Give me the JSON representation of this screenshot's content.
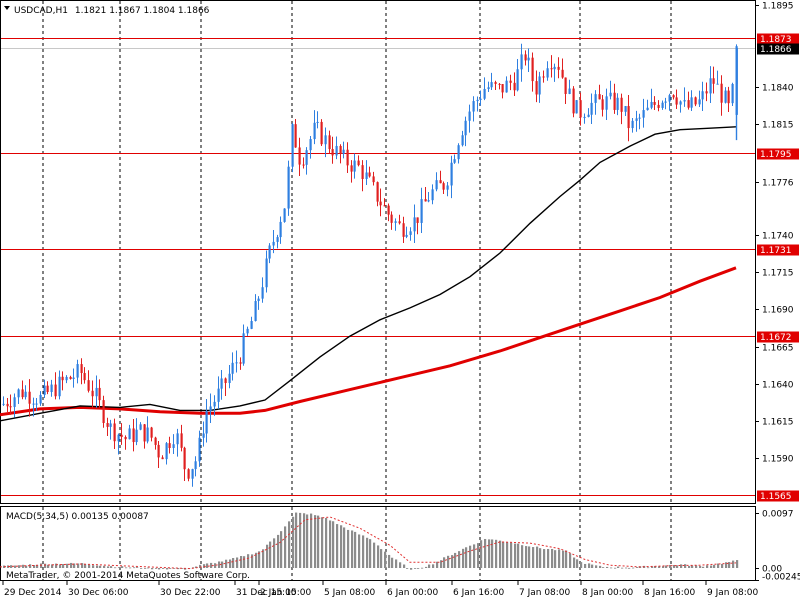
{
  "header": {
    "symbol_timeframe": "USDCAD,H1",
    "ohlc": "1.1821 1.1867 1.1804 1.1866"
  },
  "indicator": {
    "label": "MACD(5,34,5) 0.00135 0.00087",
    "copyright": "MetaTrader, © 2001-2014 MetaQuotes Software Corp."
  },
  "colors": {
    "bull": "#2f7fe0",
    "bear": "#e02020",
    "ma_fast": "#000000",
    "ma_slow": "#e00000",
    "hline": "#e00000",
    "macd_bar": "#8c8c8c",
    "macd_signal": "#e03030",
    "grid": "#000000"
  },
  "chart_data": [
    {
      "type": "candlestick",
      "title": "USDCAD,H1",
      "price_axis": {
        "ticks": [
          1.1895,
          1.184,
          1.1815,
          1.1776,
          1.174,
          1.1715,
          1.169,
          1.1665,
          1.164,
          1.1615,
          1.159
        ],
        "ylim": [
          1.156,
          1.1897
        ]
      },
      "time_axis": {
        "labels": [
          "29 Dec 2014",
          "30 Dec 06:00",
          "30 Dec 22:00",
          "31 Dec 15:00",
          "2 Jan 15:00",
          "5 Jan 08:00",
          "6 Jan 00:00",
          "6 Jan 16:00",
          "7 Jan 08:00",
          "8 Jan 00:00",
          "8 Jan 16:00",
          "9 Jan 08:00"
        ]
      },
      "horizontal_levels": [
        1.1873,
        1.1866,
        1.1795,
        1.1731,
        1.1672,
        1.1565
      ],
      "level_labels": [
        "1.1873",
        "1.1866",
        "1.1795",
        "1.1731",
        "1.1672",
        "1.1565"
      ],
      "price_path": [
        [
          0,
          1.1625
        ],
        [
          20,
          1.1635
        ],
        [
          40,
          1.163
        ],
        [
          60,
          1.164
        ],
        [
          80,
          1.1648
        ],
        [
          96,
          1.163
        ],
        [
          110,
          1.161
        ],
        [
          125,
          1.1603
        ],
        [
          140,
          1.1608
        ],
        [
          150,
          1.1605
        ],
        [
          160,
          1.1592
        ],
        [
          175,
          1.1608
        ],
        [
          186,
          1.158
        ],
        [
          197,
          1.159
        ],
        [
          205,
          1.162
        ],
        [
          220,
          1.1635
        ],
        [
          240,
          1.166
        ],
        [
          255,
          1.169
        ],
        [
          270,
          1.173
        ],
        [
          285,
          1.1762
        ],
        [
          292,
          1.1812
        ],
        [
          300,
          1.179
        ],
        [
          315,
          1.1812
        ],
        [
          330,
          1.18
        ],
        [
          345,
          1.179
        ],
        [
          360,
          1.1785
        ],
        [
          375,
          1.1768
        ],
        [
          390,
          1.1752
        ],
        [
          400,
          1.1745
        ],
        [
          415,
          1.175
        ],
        [
          430,
          1.1768
        ],
        [
          445,
          1.1775
        ],
        [
          460,
          1.181
        ],
        [
          470,
          1.1825
        ],
        [
          485,
          1.184
        ],
        [
          500,
          1.1838
        ],
        [
          515,
          1.1845
        ],
        [
          525,
          1.1862
        ],
        [
          535,
          1.1838
        ],
        [
          548,
          1.186
        ],
        [
          558,
          1.1855
        ],
        [
          568,
          1.1835
        ],
        [
          578,
          1.1822
        ],
        [
          590,
          1.1828
        ],
        [
          605,
          1.183
        ],
        [
          620,
          1.1828
        ],
        [
          630,
          1.1812
        ],
        [
          645,
          1.1822
        ],
        [
          660,
          1.1832
        ],
        [
          672,
          1.1838
        ],
        [
          685,
          1.1825
        ],
        [
          700,
          1.183
        ],
        [
          712,
          1.1845
        ],
        [
          725,
          1.183
        ],
        [
          730,
          1.1822
        ],
        [
          736,
          1.1866
        ]
      ],
      "ma_fast": [
        [
          0,
          1.1615
        ],
        [
          40,
          1.162
        ],
        [
          80,
          1.1625
        ],
        [
          120,
          1.1624
        ],
        [
          150,
          1.1626
        ],
        [
          180,
          1.1622
        ],
        [
          210,
          1.1622
        ],
        [
          240,
          1.1625
        ],
        [
          265,
          1.1629
        ],
        [
          290,
          1.1642
        ],
        [
          320,
          1.1658
        ],
        [
          350,
          1.1672
        ],
        [
          380,
          1.1683
        ],
        [
          410,
          1.1691
        ],
        [
          440,
          1.17
        ],
        [
          470,
          1.1712
        ],
        [
          500,
          1.1728
        ],
        [
          530,
          1.1748
        ],
        [
          560,
          1.1766
        ],
        [
          580,
          1.1777
        ],
        [
          600,
          1.1789
        ],
        [
          630,
          1.18
        ],
        [
          655,
          1.1808
        ],
        [
          680,
          1.1811
        ],
        [
          710,
          1.1812
        ],
        [
          736,
          1.1813
        ]
      ],
      "ma_slow": [
        [
          0,
          1.1619
        ],
        [
          40,
          1.1623
        ],
        [
          80,
          1.1624
        ],
        [
          120,
          1.1623
        ],
        [
          160,
          1.1621
        ],
        [
          200,
          1.162
        ],
        [
          240,
          1.162
        ],
        [
          265,
          1.1622
        ],
        [
          300,
          1.1628
        ],
        [
          350,
          1.1636
        ],
        [
          400,
          1.1644
        ],
        [
          450,
          1.1652
        ],
        [
          500,
          1.1662
        ],
        [
          540,
          1.1671
        ],
        [
          580,
          1.168
        ],
        [
          620,
          1.1689
        ],
        [
          660,
          1.1698
        ],
        [
          700,
          1.1709
        ],
        [
          736,
          1.1718
        ]
      ]
    },
    {
      "type": "bar",
      "title": "MACD(5,34,5) 0.00135 0.00087",
      "axis_ticks": [
        "0.0097",
        "0.00",
        "-0.00245"
      ],
      "ylim": [
        -0.00245,
        0.0097
      ],
      "histogram_path": [
        [
          0,
          0.0003
        ],
        [
          40,
          0.0007
        ],
        [
          80,
          0.0008
        ],
        [
          110,
          0.0003
        ],
        [
          150,
          -0.0001
        ],
        [
          185,
          -0.0002
        ],
        [
          200,
          0.0005
        ],
        [
          230,
          0.0015
        ],
        [
          260,
          0.003
        ],
        [
          280,
          0.0065
        ],
        [
          295,
          0.0097
        ],
        [
          310,
          0.0095
        ],
        [
          325,
          0.0088
        ],
        [
          345,
          0.007
        ],
        [
          370,
          0.005
        ],
        [
          390,
          0.002
        ],
        [
          410,
          -0.0004
        ],
        [
          430,
          0.0006
        ],
        [
          460,
          0.0032
        ],
        [
          485,
          0.0052
        ],
        [
          510,
          0.0045
        ],
        [
          540,
          0.0035
        ],
        [
          565,
          0.003
        ],
        [
          580,
          0.001
        ],
        [
          600,
          0.0002
        ],
        [
          630,
          0.0001
        ],
        [
          660,
          0.0004
        ],
        [
          680,
          0.0006
        ],
        [
          700,
          0.0003
        ],
        [
          720,
          0.0008
        ],
        [
          736,
          0.0013
        ]
      ],
      "signal_path": [
        [
          0,
          0.0002
        ],
        [
          40,
          0.0005
        ],
        [
          80,
          0.0007
        ],
        [
          120,
          0.0004
        ],
        [
          160,
          0.0001
        ],
        [
          190,
          -0.0001
        ],
        [
          220,
          0.0006
        ],
        [
          250,
          0.0018
        ],
        [
          280,
          0.0045
        ],
        [
          305,
          0.0085
        ],
        [
          330,
          0.009
        ],
        [
          360,
          0.007
        ],
        [
          390,
          0.004
        ],
        [
          410,
          0.001
        ],
        [
          440,
          0.001
        ],
        [
          470,
          0.003
        ],
        [
          500,
          0.0046
        ],
        [
          530,
          0.0044
        ],
        [
          560,
          0.0034
        ],
        [
          585,
          0.0015
        ],
        [
          610,
          0.0005
        ],
        [
          640,
          0.0002
        ],
        [
          670,
          0.0004
        ],
        [
          700,
          0.0005
        ],
        [
          736,
          0.0009
        ]
      ]
    }
  ]
}
